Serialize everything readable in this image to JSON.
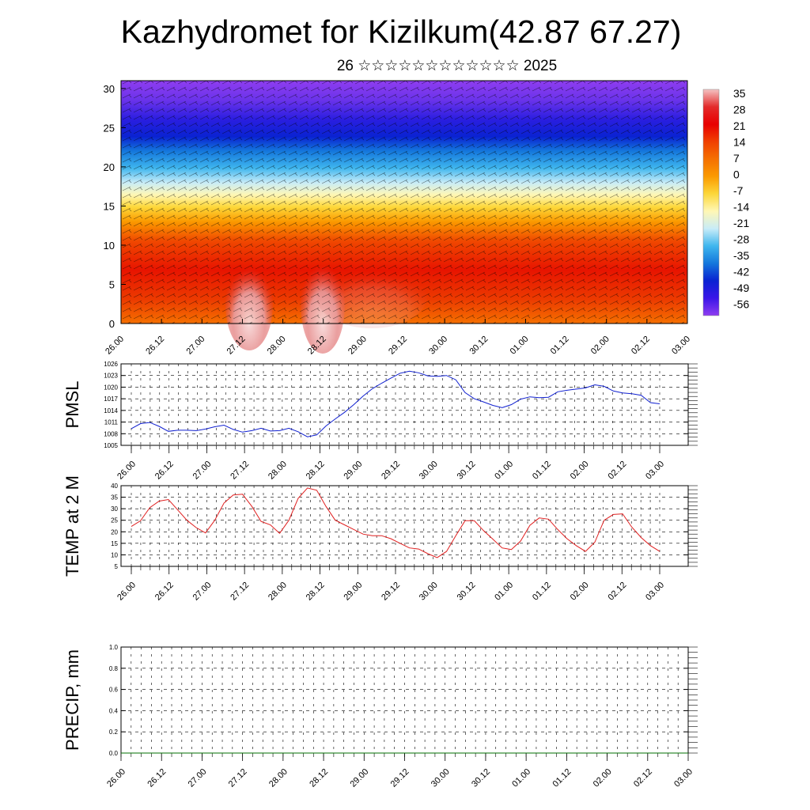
{
  "page": {
    "title": "Kazhydromet for Kizilkum(42.87 67.27)",
    "subtitle": "26 ☆☆☆☆☆☆☆☆☆☆☆☆ 2025"
  },
  "chart_data": [
    {
      "type": "heatmap",
      "name": "cross-section",
      "ylim": [
        0,
        31
      ],
      "yticks": [
        0,
        5,
        10,
        15,
        20,
        25,
        30
      ],
      "xticks": [
        "26.00",
        "26.12",
        "27.00",
        "27.12",
        "28.00",
        "28.12",
        "29.00",
        "29.12",
        "30.00",
        "30.12",
        "01.00",
        "01.12",
        "02.00",
        "02.12",
        "03.00"
      ],
      "colorbar": {
        "labels": [
          "35",
          "28",
          "21",
          "14",
          "7",
          "0",
          "-7",
          "-14",
          "-21",
          "-28",
          "-35",
          "-42",
          "-49",
          "-56"
        ],
        "stops": [
          "#f5c3c3",
          "#e32b2b",
          "#e80000",
          "#f04000",
          "#f57000",
          "#fb9a00",
          "#fcd73a",
          "#fff7b5",
          "#c8ecf8",
          "#3fb6ee",
          "#1477dc",
          "#0a22d2",
          "#3a16e8",
          "#8f3df0"
        ]
      },
      "grid": false,
      "wind_barbs": true
    },
    {
      "type": "line",
      "name": "pmsl",
      "ylabel": "PMSL",
      "ylim": [
        1005,
        1026
      ],
      "yticks": [
        1005,
        1008,
        1011,
        1014,
        1017,
        1020,
        1023,
        1026
      ],
      "xticks": [
        "26.00",
        "26.12",
        "27.00",
        "27.12",
        "28.00",
        "28.12",
        "29.00",
        "29.12",
        "30.00",
        "30.12",
        "01.00",
        "01.12",
        "02.00",
        "02.12",
        "03.00"
      ],
      "grid": true,
      "series_color": "#1020d0",
      "values": [
        1009.3,
        1010.6,
        1010.9,
        1009.9,
        1008.6,
        1008.9,
        1008.9,
        1008.8,
        1009.2,
        1009.8,
        1010.2,
        1009.1,
        1008.4,
        1008.8,
        1009.4,
        1008.7,
        1008.8,
        1009.4,
        1008.5,
        1007.2,
        1007.7,
        1010.0,
        1011.8,
        1013.5,
        1015.5,
        1017.7,
        1019.6,
        1021.0,
        1022.3,
        1023.6,
        1024.1,
        1023.7,
        1022.9,
        1022.8,
        1023.0,
        1021.9,
        1018.6,
        1017.0,
        1016.2,
        1015.3,
        1014.7,
        1015.5,
        1016.9,
        1017.5,
        1017.3,
        1017.4,
        1018.8,
        1019.2,
        1019.5,
        1019.8,
        1020.6,
        1020.2,
        1019.0,
        1018.5,
        1018.3,
        1017.9,
        1016.0,
        1015.7
      ]
    },
    {
      "type": "line",
      "name": "temp",
      "ylabel": "TEMP at 2 M",
      "ylim": [
        5,
        40
      ],
      "yticks": [
        5,
        10,
        15,
        20,
        25,
        30,
        35,
        40
      ],
      "xticks": [
        "26.00",
        "26.12",
        "27.00",
        "27.12",
        "28.00",
        "28.12",
        "29.00",
        "29.12",
        "30.00",
        "30.12",
        "01.00",
        "01.12",
        "02.00",
        "02.12",
        "03.00"
      ],
      "grid": true,
      "series_color": "#e02020",
      "values": [
        22.3,
        24.8,
        30.5,
        33.3,
        34.0,
        29.5,
        25.0,
        21.8,
        19.5,
        25.0,
        32.5,
        36.0,
        36.3,
        31.0,
        24.5,
        23.0,
        19.3,
        25.0,
        34.5,
        39.0,
        38.0,
        31.0,
        25.0,
        23.0,
        21.0,
        19.0,
        18.3,
        18.3,
        17.0,
        15.0,
        13.0,
        12.5,
        10.5,
        8.8,
        11.5,
        18.3,
        24.8,
        24.8,
        20.5,
        16.8,
        13.0,
        12.3,
        16.0,
        22.8,
        26.0,
        25.5,
        21.0,
        17.0,
        14.0,
        11.5,
        15.5,
        25.0,
        27.5,
        27.8,
        22.0,
        17.5,
        14.0,
        11.5
      ]
    },
    {
      "type": "line",
      "name": "precip",
      "ylabel": "PRECIP, mm",
      "ylim": [
        0,
        1.0
      ],
      "yticks": [
        "0.0",
        "0.2",
        "0.4",
        "0.6",
        "0.8",
        "1.0"
      ],
      "xticks": [
        "26.00",
        "26.12",
        "27.00",
        "27.12",
        "28.00",
        "28.12",
        "29.00",
        "29.12",
        "30.00",
        "30.12",
        "01.00",
        "01.12",
        "02.00",
        "02.12",
        "03.00"
      ],
      "grid": true,
      "series_color": "#007000",
      "values": [
        0,
        0,
        0,
        0,
        0,
        0,
        0,
        0,
        0,
        0,
        0,
        0,
        0,
        0,
        0,
        0,
        0,
        0,
        0,
        0,
        0,
        0,
        0,
        0,
        0,
        0,
        0,
        0,
        0,
        0,
        0,
        0,
        0,
        0,
        0,
        0,
        0,
        0,
        0,
        0,
        0,
        0,
        0,
        0,
        0,
        0,
        0,
        0,
        0,
        0,
        0,
        0,
        0,
        0,
        0,
        0,
        0,
        0
      ]
    }
  ]
}
